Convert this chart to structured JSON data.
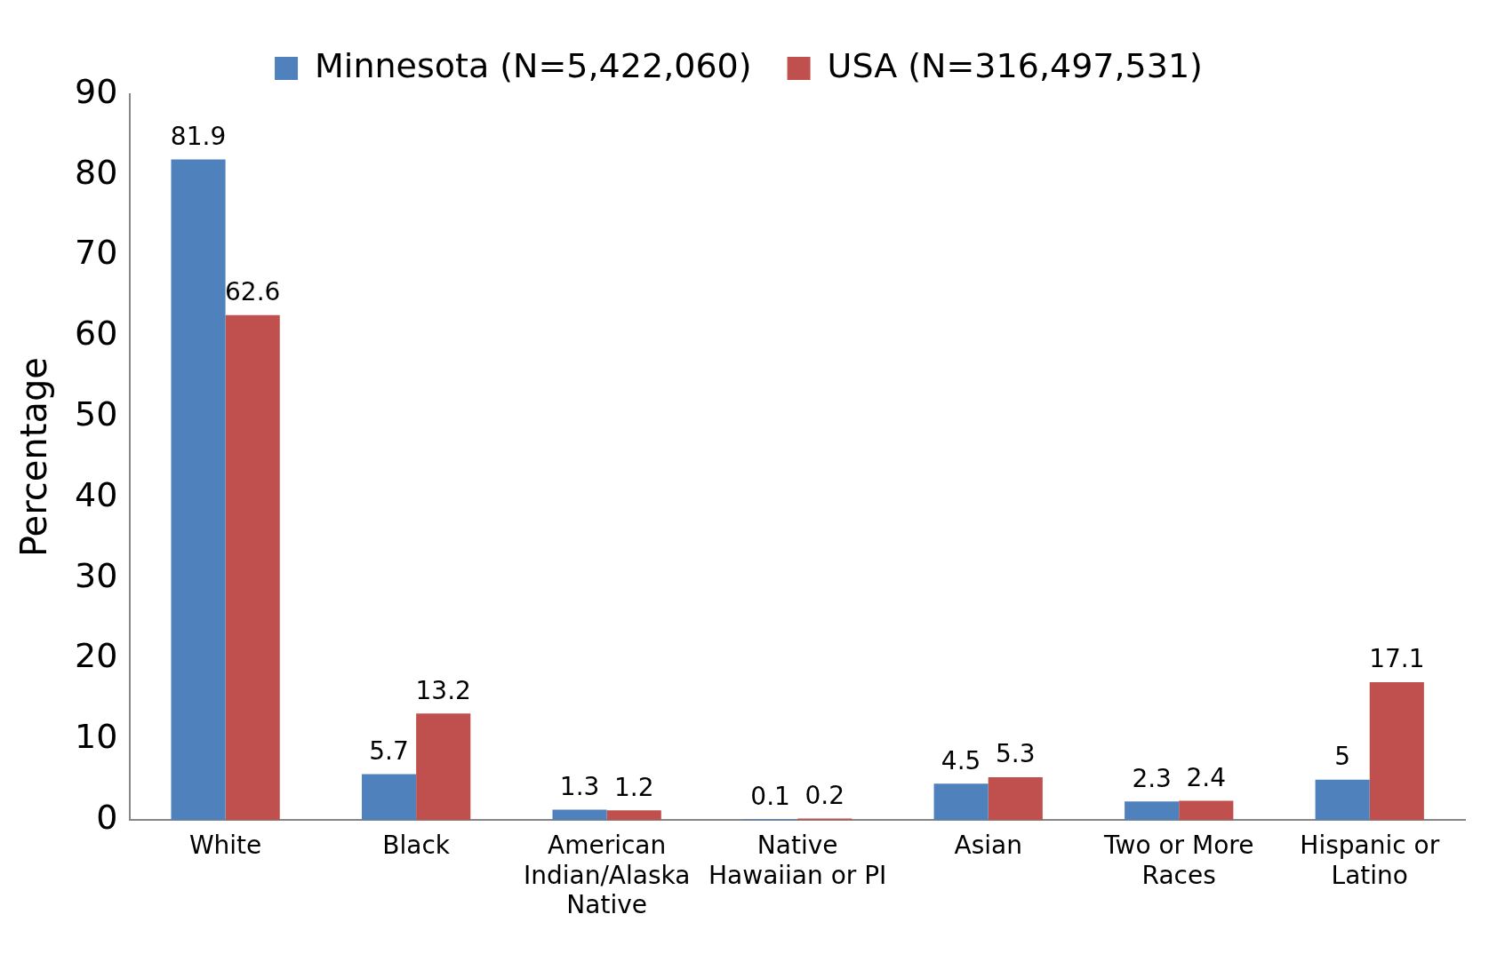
{
  "chart_data": {
    "type": "bar",
    "ylabel": "Percentage",
    "categories": [
      "White",
      "Black",
      "American Indian/Alaska Native",
      "Native Hawaiian or PI",
      "Asian",
      "Two or More Races",
      "Hispanic or Latino"
    ],
    "series": [
      {
        "name": "Minnesota (N=5,422,060)",
        "color": "#4f81bd",
        "values": [
          81.9,
          5.7,
          1.3,
          0.1,
          4.5,
          2.3,
          5
        ]
      },
      {
        "name": "USA (N=316,497,531)",
        "color": "#c0504d",
        "values": [
          62.6,
          13.2,
          1.2,
          0.2,
          5.3,
          2.4,
          17.1
        ]
      }
    ],
    "ylim": [
      0,
      90
    ],
    "yticks": [
      0,
      10,
      20,
      30,
      40,
      50,
      60,
      70,
      80,
      90
    ],
    "grid": false,
    "legend": "top",
    "data_labels": true
  }
}
